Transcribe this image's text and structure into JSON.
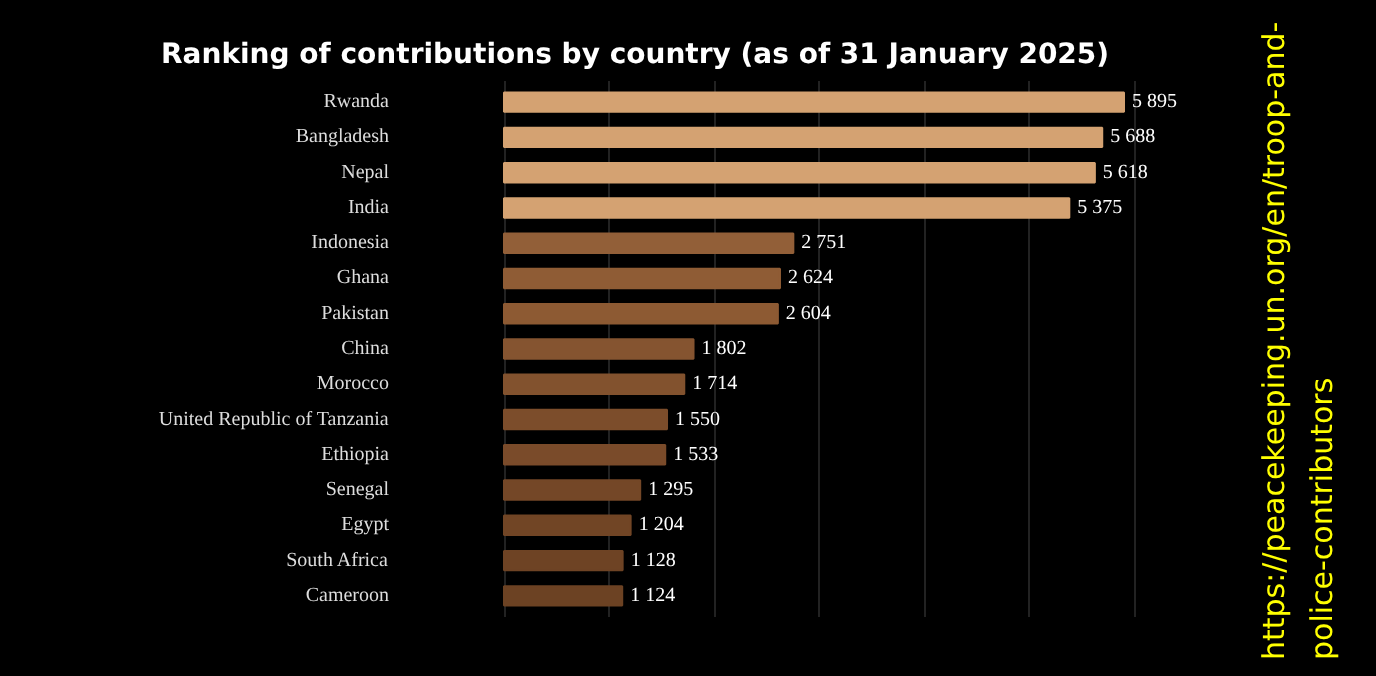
{
  "chart_data": {
    "type": "bar",
    "orientation": "horizontal",
    "title": "Ranking of contributions by country (as of  31 January 2025)",
    "categories": [
      "Rwanda",
      "Bangladesh",
      "Nepal",
      "India",
      "Indonesia",
      "Ghana",
      "Pakistan",
      "China",
      "Morocco",
      "United Republic of Tanzania",
      "Ethiopia",
      "Senegal",
      "Egypt",
      "South Africa",
      "Cameroon"
    ],
    "values": [
      5895,
      5688,
      5618,
      5375,
      2751,
      2624,
      2604,
      1802,
      1714,
      1550,
      1533,
      1295,
      1204,
      1128,
      1124
    ],
    "value_labels": [
      "5 895",
      "5 688",
      "5 618",
      "5 375",
      "2 751",
      "2 624",
      "2 604",
      "1 802",
      "1 714",
      "1 550",
      "1 533",
      "1 295",
      "1 204",
      "1 128",
      "1 124"
    ],
    "colors": [
      "#d4a272",
      "#d4a272",
      "#d4a272",
      "#d4a272",
      "#925f38",
      "#8f5c35",
      "#8d5a33",
      "#855430",
      "#82522e",
      "#7c4d2b",
      "#7a4b2a",
      "#744727",
      "#714525",
      "#6e4324",
      "#6c4223"
    ],
    "grid": "x",
    "tick_labels": "y",
    "annotations": [
      "https://peacekeeping.un.org/en/troop-and-police-contributors"
    ]
  }
}
